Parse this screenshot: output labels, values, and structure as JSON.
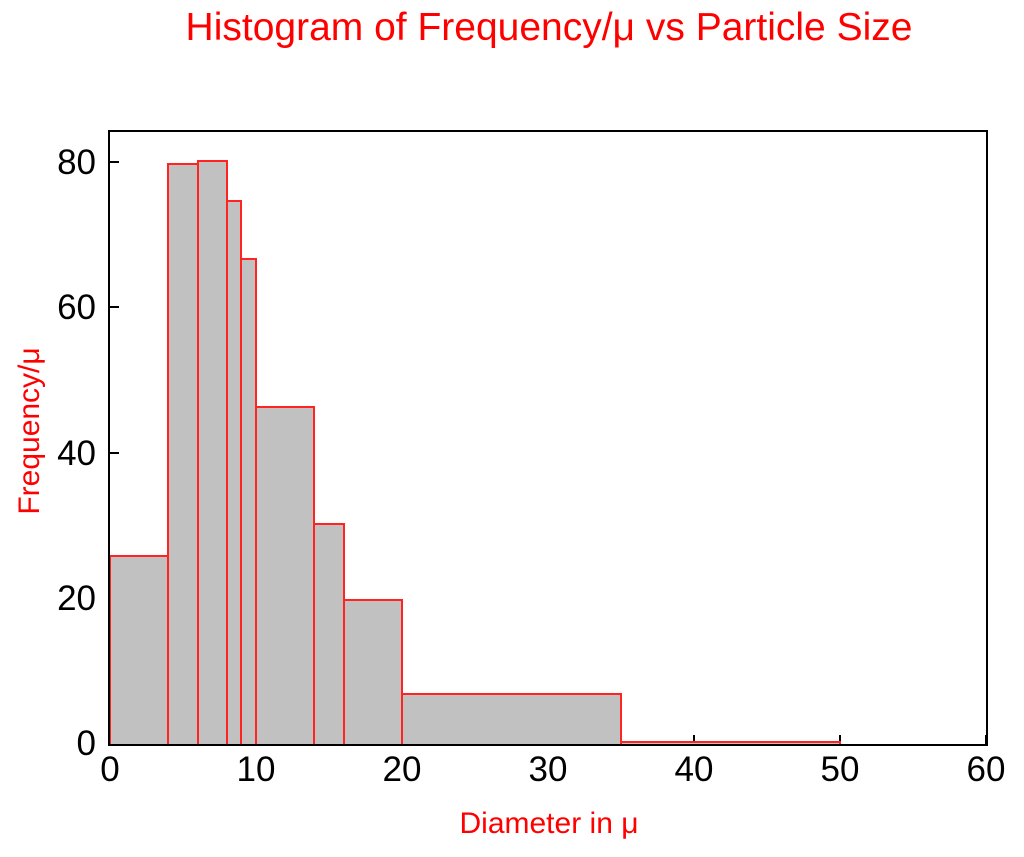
{
  "chart_data": {
    "type": "bar",
    "subtype": "histogram",
    "title": "Histogram of Frequency/μ vs Particle Size",
    "xlabel": "Diameter in μ",
    "ylabel": "Frequency/μ",
    "bin_edges": [
      0,
      4,
      6,
      8,
      9,
      10,
      14,
      16,
      20,
      35,
      50
    ],
    "densities": [
      26,
      80,
      80.5,
      75,
      67,
      46.5,
      30.5,
      20,
      7,
      0.4
    ],
    "xticks": [
      0,
      10,
      20,
      30,
      40,
      50,
      60
    ],
    "yticks": [
      0,
      20,
      40,
      60,
      80
    ],
    "xlim": [
      0,
      60
    ],
    "ylim": [
      0,
      84.3
    ],
    "grid": false,
    "legend": "none",
    "frame": "boxed, ticks point inward on left and bottom axes",
    "colors": {
      "accent_text": "#ff0000",
      "bar_fill": "#c1c1c1",
      "bar_edge": "#ff2321",
      "axis": "#000000",
      "tick_label": "#000000",
      "background": "#ffffff"
    }
  }
}
